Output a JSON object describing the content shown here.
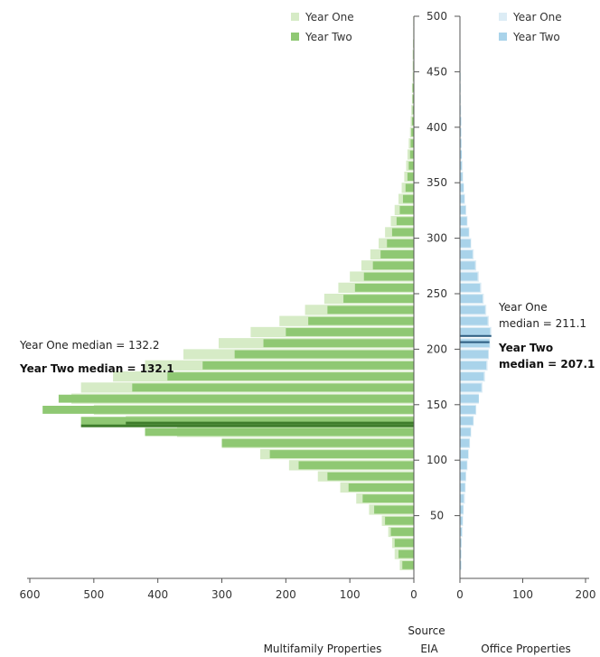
{
  "chart_data": {
    "type": "bar",
    "orientation": "horizontal",
    "layout": "back-to-back histogram",
    "y_axis": {
      "range": [
        0,
        500
      ],
      "ticks": [
        50,
        100,
        150,
        200,
        250,
        300,
        350,
        400,
        450,
        500
      ]
    },
    "source_label": "Source",
    "source_value": "EIA",
    "panels": [
      {
        "id": "left",
        "xlabel": "Multifamily Properties",
        "xlim": [
          600,
          0
        ],
        "x_ticks": [
          600,
          500,
          400,
          300,
          200,
          100,
          0
        ],
        "legend": [
          "Year One",
          "Year Two"
        ],
        "colors": {
          "year_one": "#d6ebc6",
          "year_two": "#8fc873",
          "median": "#3f7d2c"
        },
        "bin_width": 10,
        "bins": [
          0,
          10,
          20,
          30,
          40,
          50,
          60,
          70,
          80,
          90,
          100,
          110,
          120,
          130,
          140,
          150,
          160,
          170,
          180,
          190,
          200,
          210,
          220,
          230,
          240,
          250,
          260,
          270,
          280,
          290,
          300,
          310,
          320,
          330,
          340,
          350,
          360,
          370,
          380,
          390,
          400,
          410,
          420,
          430,
          440,
          450,
          460,
          470,
          480,
          490
        ],
        "series": [
          {
            "name": "Year One",
            "values": [
              22,
              30,
              34,
              40,
              50,
              70,
              90,
              115,
              150,
              195,
              240,
              300,
              370,
              450,
              500,
              535,
              520,
              470,
              420,
              360,
              305,
              255,
              210,
              170,
              140,
              118,
              100,
              82,
              68,
              55,
              45,
              36,
              30,
              24,
              19,
              15,
              12,
              10,
              8,
              6,
              5,
              4,
              3,
              3,
              2,
              2,
              2,
              1,
              1,
              1
            ]
          },
          {
            "name": "Year Two",
            "values": [
              18,
              24,
              30,
              36,
              45,
              62,
              80,
              102,
              135,
              180,
              225,
              300,
              420,
              520,
              580,
              555,
              440,
              385,
              330,
              280,
              235,
              200,
              165,
              135,
              110,
              92,
              78,
              64,
              52,
              42,
              34,
              27,
              22,
              17,
              13,
              10,
              8,
              6,
              5,
              4,
              3,
              2,
              2,
              2,
              1,
              1,
              1,
              1,
              0,
              0
            ]
          }
        ],
        "medians": [
          {
            "label": "Year One median = 132.2",
            "value": 132.2
          },
          {
            "label": "Year Two median = 132.1",
            "value": 132.1
          }
        ]
      },
      {
        "id": "right",
        "xlabel": "Office Properties",
        "xlim": [
          0,
          200
        ],
        "x_ticks": [
          0,
          100,
          200
        ],
        "legend": [
          "Year One",
          "Year Two"
        ],
        "colors": {
          "year_one": "#dcecf5",
          "year_two": "#a9d3ea",
          "median": "#2c5c80"
        },
        "bin_width": 10,
        "bins": [
          0,
          10,
          20,
          30,
          40,
          50,
          60,
          70,
          80,
          90,
          100,
          110,
          120,
          130,
          140,
          150,
          160,
          170,
          180,
          190,
          200,
          210,
          220,
          230,
          240,
          250,
          260,
          270,
          280,
          290,
          300,
          310,
          320,
          330,
          340,
          350,
          360,
          370,
          380,
          390,
          400,
          410,
          420,
          430,
          440,
          450,
          460,
          470,
          480,
          490
        ],
        "series": [
          {
            "name": "Year One",
            "values": [
              2,
              2,
              3,
              4,
              5,
              6,
              8,
              9,
              10,
              12,
              14,
              16,
              18,
              22,
              26,
              30,
              36,
              40,
              44,
              46,
              48,
              50,
              46,
              42,
              38,
              34,
              30,
              26,
              22,
              18,
              15,
              12,
              10,
              8,
              6,
              5,
              4,
              3,
              3,
              2,
              2,
              2,
              1,
              1,
              1,
              1,
              1,
              0,
              0,
              0
            ]
          },
          {
            "name": "Year Two",
            "values": [
              2,
              2,
              2,
              3,
              4,
              5,
              6,
              8,
              9,
              11,
              13,
              15,
              17,
              21,
              25,
              30,
              34,
              38,
              42,
              45,
              47,
              48,
              44,
              40,
              36,
              32,
              28,
              24,
              20,
              17,
              14,
              11,
              9,
              7,
              6,
              4,
              3,
              3,
              2,
              2,
              2,
              1,
              1,
              1,
              1,
              0,
              0,
              0,
              0,
              0
            ]
          }
        ],
        "medians": [
          {
            "label_lines": [
              "Year One",
              "median = 211.1"
            ],
            "value": 211.1
          },
          {
            "label_lines": [
              "Year Two",
              "median = 207.1"
            ],
            "value": 207.1
          }
        ]
      }
    ]
  }
}
